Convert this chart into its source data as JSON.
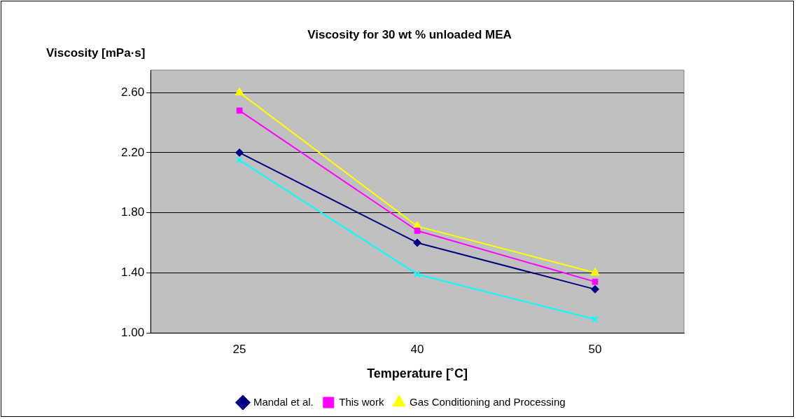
{
  "chart_data": {
    "type": "line",
    "title": "Viscosity for 30 wt % unloaded MEA",
    "xlabel": "Temperature [˚C]",
    "ylabel": "Viscosity [mPa·s]",
    "categories": [
      "25",
      "40",
      "50"
    ],
    "series": [
      {
        "name": "Mandal et al.",
        "color": "#000080",
        "marker": "diamond",
        "values": [
          2.2,
          1.6,
          1.29
        ]
      },
      {
        "name": "This work",
        "color": "#ff00ff",
        "marker": "square",
        "values": [
          2.48,
          1.68,
          1.34
        ]
      },
      {
        "name": "Gas Conditioning and Processing",
        "color": "#ffff00",
        "marker": "triangle",
        "values": [
          2.6,
          1.71,
          1.4
        ]
      },
      {
        "color": "#00ffff",
        "marker": "cross",
        "values": [
          2.15,
          1.39,
          1.09
        ]
      }
    ],
    "ylim": [
      1.0,
      2.75
    ],
    "yticks": [
      {
        "value": 1.0,
        "label": "1.00"
      },
      {
        "value": 1.4,
        "label": "1.40"
      },
      {
        "value": 1.8,
        "label": "1.80"
      },
      {
        "value": 2.2,
        "label": "2.20"
      },
      {
        "value": 2.6,
        "label": "2.60"
      }
    ],
    "grid": "y",
    "legend": "bottom",
    "line_style": "solid"
  }
}
